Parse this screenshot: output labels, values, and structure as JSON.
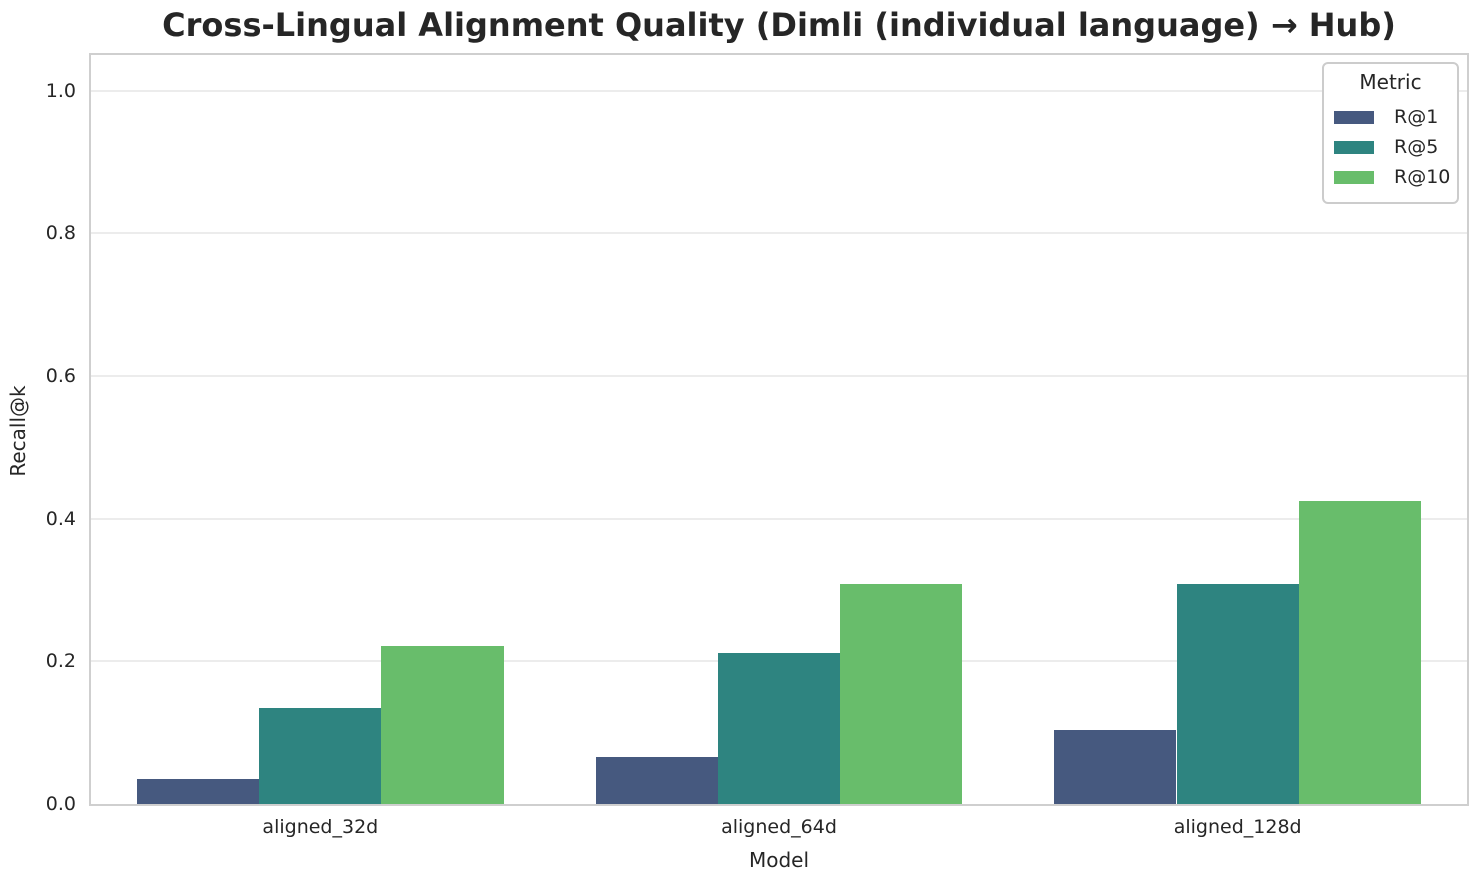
{
  "chart_data": {
    "type": "bar",
    "title": "Cross-Lingual Alignment Quality (Dimli (individual language) → Hub)",
    "xlabel": "Model",
    "ylabel": "Recall@k",
    "categories": [
      "aligned_32d",
      "aligned_64d",
      "aligned_128d"
    ],
    "series": [
      {
        "name": "R@1",
        "color": "#46597f",
        "values": [
          0.035,
          0.066,
          0.104
        ]
      },
      {
        "name": "R@5",
        "color": "#2e8480",
        "values": [
          0.134,
          0.212,
          0.308
        ]
      },
      {
        "name": "R@10",
        "color": "#68bd6b",
        "values": [
          0.221,
          0.308,
          0.425
        ]
      }
    ],
    "legend": {
      "title": "Metric",
      "position": "upper-right"
    },
    "ylim": [
      0,
      1.05
    ],
    "yticks": [
      0.0,
      0.2,
      0.4,
      0.6,
      0.8,
      1.0
    ],
    "grid": "horizontal"
  },
  "colors": {
    "text": "#262626",
    "grid": "#ececec",
    "spine": "#cfcfcf",
    "background": "#ffffff"
  }
}
